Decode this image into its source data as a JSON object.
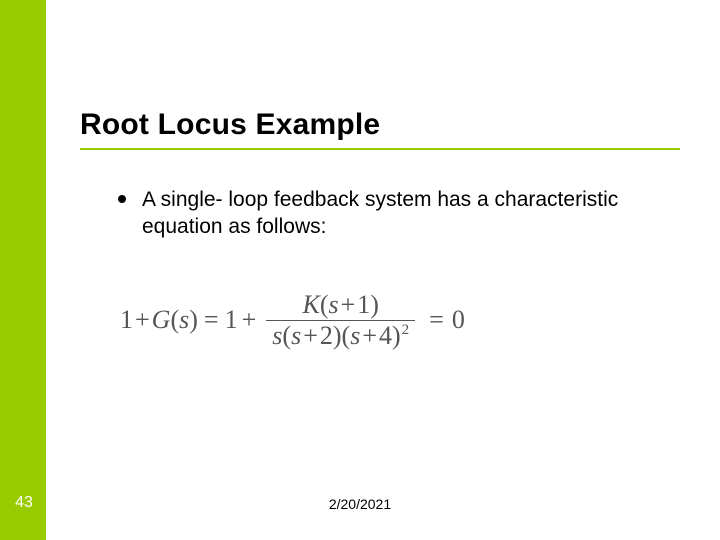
{
  "slide": {
    "title": "Root Locus Example",
    "bullet": "A single- loop feedback system has a characteristic equation as follows:",
    "page_number": "43",
    "date": "2/20/2021",
    "colors": {
      "accent": "#99cc00",
      "text": "#000000",
      "equation": "#555555",
      "page_num_text": "#ffffff",
      "background": "#ffffff"
    },
    "equation": {
      "lhs_a": "1",
      "plus1": "+",
      "G": "G",
      "s_var": "s",
      "open": "(",
      "close": ")",
      "eq": "=",
      "one": "1",
      "plus2": "+",
      "K": "K",
      "splus1_open": "(",
      "splus1": "s",
      "splus1_plus": "+",
      "splus1_val": "1",
      "splus1_close": ")",
      "den_s": "s",
      "den_op1": "(",
      "den_s2": "s",
      "den_plus2": "+",
      "den_2": "2",
      "den_cl1": ")",
      "den_op2": "(",
      "den_s4": "s",
      "den_plus4": "+",
      "den_4": "4",
      "den_cl2": ")",
      "den_sq": "2",
      "rhs_eq": "=",
      "rhs_zero": "0"
    }
  }
}
